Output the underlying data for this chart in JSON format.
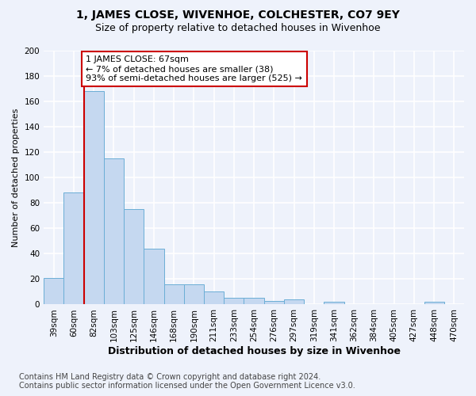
{
  "title": "1, JAMES CLOSE, WIVENHOE, COLCHESTER, CO7 9EY",
  "subtitle": "Size of property relative to detached houses in Wivenhoe",
  "xlabel": "Distribution of detached houses by size in Wivenhoe",
  "ylabel": "Number of detached properties",
  "categories": [
    "39sqm",
    "60sqm",
    "82sqm",
    "103sqm",
    "125sqm",
    "146sqm",
    "168sqm",
    "190sqm",
    "211sqm",
    "233sqm",
    "254sqm",
    "276sqm",
    "297sqm",
    "319sqm",
    "341sqm",
    "362sqm",
    "384sqm",
    "405sqm",
    "427sqm",
    "448sqm",
    "470sqm"
  ],
  "values": [
    21,
    88,
    168,
    115,
    75,
    44,
    16,
    16,
    10,
    5,
    5,
    3,
    4,
    0,
    2,
    0,
    0,
    0,
    0,
    2,
    0
  ],
  "bar_color": "#c5d8f0",
  "bar_edge_color": "#6baed6",
  "vline_x": 1.5,
  "vline_color": "#cc0000",
  "annotation_text": "1 JAMES CLOSE: 67sqm\n← 7% of detached houses are smaller (38)\n93% of semi-detached houses are larger (525) →",
  "annotation_box_color": "#ffffff",
  "annotation_box_edge": "#cc0000",
  "ylim": [
    0,
    200
  ],
  "yticks": [
    0,
    20,
    40,
    60,
    80,
    100,
    120,
    140,
    160,
    180,
    200
  ],
  "footer": "Contains HM Land Registry data © Crown copyright and database right 2024.\nContains public sector information licensed under the Open Government Licence v3.0.",
  "background_color": "#eef2fb",
  "grid_color": "#ffffff",
  "title_fontsize": 10,
  "subtitle_fontsize": 9,
  "xlabel_fontsize": 9,
  "ylabel_fontsize": 8,
  "tick_fontsize": 7.5,
  "footer_fontsize": 7,
  "annot_fontsize": 8
}
